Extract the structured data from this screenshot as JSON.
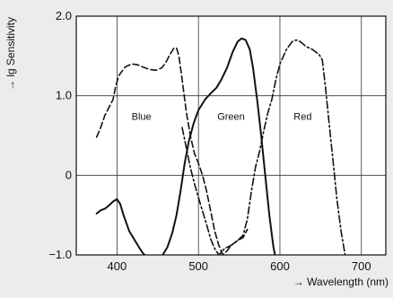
{
  "chart_data": {
    "type": "line",
    "xlabel": "→ Wavelength (nm)",
    "ylabel": "→ lg Sensitivity",
    "xlim": [
      350,
      730
    ],
    "ylim": [
      -1.0,
      2.0
    ],
    "x_ticks": [
      400,
      500,
      600,
      700
    ],
    "x_tick_labels": [
      "400",
      "500",
      "600",
      "700"
    ],
    "y_ticks": [
      -1.0,
      0,
      1.0,
      2.0
    ],
    "y_tick_labels": [
      "−1.0",
      "0",
      "1.0",
      "2.0"
    ],
    "grid": true,
    "region_labels": [
      {
        "text": "Blue",
        "x": 430,
        "y": 0.7
      },
      {
        "text": "Green",
        "x": 540,
        "y": 0.7
      },
      {
        "text": "Red",
        "x": 628,
        "y": 0.7
      }
    ],
    "series": [
      {
        "name": "",
        "style": "dashed",
        "points": [
          [
            375,
            0.48
          ],
          [
            380,
            0.6
          ],
          [
            385,
            0.75
          ],
          [
            390,
            0.85
          ],
          [
            395,
            0.95
          ],
          [
            398,
            1.1
          ],
          [
            402,
            1.25
          ],
          [
            410,
            1.36
          ],
          [
            418,
            1.4
          ],
          [
            425,
            1.39
          ],
          [
            432,
            1.36
          ],
          [
            440,
            1.33
          ],
          [
            448,
            1.32
          ],
          [
            455,
            1.35
          ],
          [
            460,
            1.42
          ],
          [
            465,
            1.52
          ],
          [
            470,
            1.6
          ],
          [
            473,
            1.6
          ],
          [
            476,
            1.5
          ],
          [
            480,
            1.2
          ],
          [
            485,
            0.8
          ],
          [
            490,
            0.5
          ],
          [
            495,
            0.28
          ],
          [
            500,
            0.15
          ],
          [
            505,
            0.0
          ],
          [
            510,
            -0.2
          ],
          [
            515,
            -0.45
          ],
          [
            520,
            -0.7
          ],
          [
            525,
            -0.88
          ],
          [
            530,
            -1.0
          ],
          [
            535,
            -0.95
          ],
          [
            540,
            -0.88
          ],
          [
            548,
            -0.82
          ],
          [
            555,
            -0.78
          ],
          [
            560,
            -0.68
          ]
        ]
      },
      {
        "name": "",
        "style": "solid",
        "points": [
          [
            375,
            -0.48
          ],
          [
            380,
            -0.44
          ],
          [
            385,
            -0.42
          ],
          [
            390,
            -0.38
          ],
          [
            395,
            -0.33
          ],
          [
            400,
            -0.3
          ],
          [
            404,
            -0.36
          ],
          [
            408,
            -0.5
          ],
          [
            415,
            -0.7
          ],
          [
            422,
            -0.82
          ],
          [
            428,
            -0.92
          ],
          [
            432,
            -0.98
          ],
          [
            436,
            -1.02
          ],
          [
            445,
            -1.05
          ],
          [
            455,
            -1.02
          ],
          [
            462,
            -0.9
          ],
          [
            468,
            -0.72
          ],
          [
            473,
            -0.5
          ],
          [
            478,
            -0.2
          ],
          [
            483,
            0.15
          ],
          [
            488,
            0.42
          ],
          [
            494,
            0.65
          ],
          [
            500,
            0.82
          ],
          [
            508,
            0.95
          ],
          [
            515,
            1.03
          ],
          [
            522,
            1.1
          ],
          [
            528,
            1.2
          ],
          [
            535,
            1.35
          ],
          [
            542,
            1.55
          ],
          [
            548,
            1.68
          ],
          [
            553,
            1.72
          ],
          [
            558,
            1.7
          ],
          [
            563,
            1.58
          ],
          [
            567,
            1.35
          ],
          [
            572,
            0.95
          ],
          [
            577,
            0.5
          ],
          [
            582,
            0.0
          ],
          [
            587,
            -0.5
          ],
          [
            592,
            -0.9
          ],
          [
            595,
            -1.05
          ]
        ]
      },
      {
        "name": "",
        "style": "dash-dot",
        "points": [
          [
            480,
            0.6
          ],
          [
            485,
            0.35
          ],
          [
            490,
            0.1
          ],
          [
            495,
            -0.1
          ],
          [
            500,
            -0.28
          ],
          [
            505,
            -0.45
          ],
          [
            510,
            -0.62
          ],
          [
            515,
            -0.8
          ],
          [
            520,
            -0.92
          ],
          [
            525,
            -1.0
          ],
          [
            532,
            -0.92
          ],
          [
            540,
            -0.88
          ],
          [
            548,
            -0.82
          ],
          [
            555,
            -0.75
          ],
          [
            560,
            -0.55
          ],
          [
            565,
            -0.2
          ],
          [
            570,
            0.1
          ],
          [
            575,
            0.3
          ],
          [
            580,
            0.55
          ],
          [
            585,
            0.78
          ],
          [
            590,
            0.95
          ],
          [
            595,
            1.2
          ],
          [
            600,
            1.4
          ],
          [
            608,
            1.58
          ],
          [
            615,
            1.68
          ],
          [
            620,
            1.7
          ],
          [
            625,
            1.68
          ],
          [
            632,
            1.62
          ],
          [
            640,
            1.58
          ],
          [
            648,
            1.52
          ],
          [
            652,
            1.45
          ],
          [
            656,
            1.1
          ],
          [
            660,
            0.7
          ],
          [
            665,
            0.2
          ],
          [
            670,
            -0.3
          ],
          [
            675,
            -0.7
          ],
          [
            680,
            -1.0
          ]
        ]
      }
    ]
  }
}
